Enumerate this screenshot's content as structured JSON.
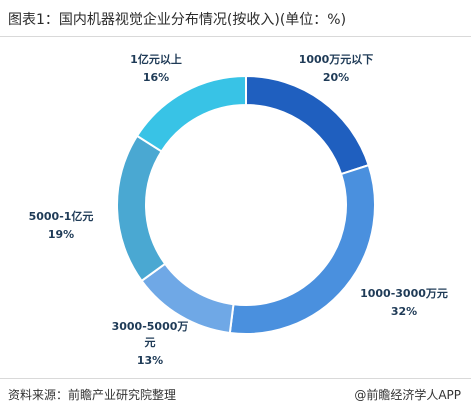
{
  "title": "图表1：国内机器视觉企业分布情况(按收入)(单位：%)",
  "source": "资料来源：前瞻产业研究院整理",
  "brand": "@前瞻经济学人APP",
  "chart_data": {
    "type": "pie",
    "donut": true,
    "title": "图表1：国内机器视觉企业分布情况(按收入)(单位：%)",
    "unit": "%",
    "slices": [
      {
        "label": "1000万元以下",
        "label_lines": [
          "1000万元以下"
        ],
        "value": 20,
        "value_text": "20%",
        "color": "#1f5fbf"
      },
      {
        "label": "1000-3000万元",
        "label_lines": [
          "1000-3000万元"
        ],
        "value": 32,
        "value_text": "32%",
        "color": "#4a90de"
      },
      {
        "label": "3000-5000万元",
        "label_lines": [
          "3000-5000万",
          "元"
        ],
        "value": 13,
        "value_text": "13%",
        "color": "#6fa8e6"
      },
      {
        "label": "5000-1亿元",
        "label_lines": [
          "5000-1亿元"
        ],
        "value": 19,
        "value_text": "19%",
        "color": "#4aa8d2"
      },
      {
        "label": "1亿元以上",
        "label_lines": [
          "1亿元以上"
        ],
        "value": 16,
        "value_text": "16%",
        "color": "#38c3e6"
      }
    ]
  }
}
